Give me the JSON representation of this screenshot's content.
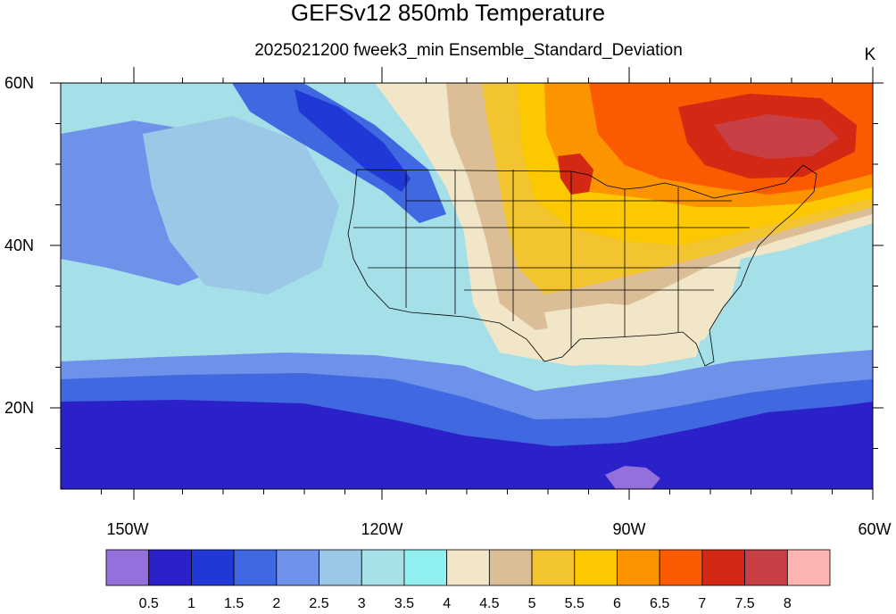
{
  "title": "GEFSv12 850mb Temperature",
  "subtitle": "2025021200 fweek3_min Ensemble_Standard_Deviation",
  "units": "K",
  "map": {
    "projection": "cylindrical-equidistant",
    "lon_range": [
      -160,
      -60
    ],
    "lat_range": [
      10,
      60
    ],
    "lat_labels": [
      "60N",
      "40N",
      "20N"
    ],
    "lon_labels": [
      "150W",
      "120W",
      "90W",
      "60W"
    ],
    "background": "#a5e0e8"
  },
  "colorbar": {
    "colors": [
      "#9370db",
      "#2a22c8",
      "#1f38d6",
      "#4068e0",
      "#6e92ea",
      "#9cc8e8",
      "#a8e0e8",
      "#90f0f0",
      "#f2e6c8",
      "#dcbe96",
      "#f2c430",
      "#fcc800",
      "#fc9400",
      "#fc5a00",
      "#d22814",
      "#c84046",
      "#ffb4b4"
    ],
    "labels": [
      "0.5",
      "1",
      "1.5",
      "2",
      "2.5",
      "3",
      "3.5",
      "4",
      "4.5",
      "5",
      "5.5",
      "6",
      "6.5",
      "7",
      "7.5",
      "8"
    ]
  }
}
